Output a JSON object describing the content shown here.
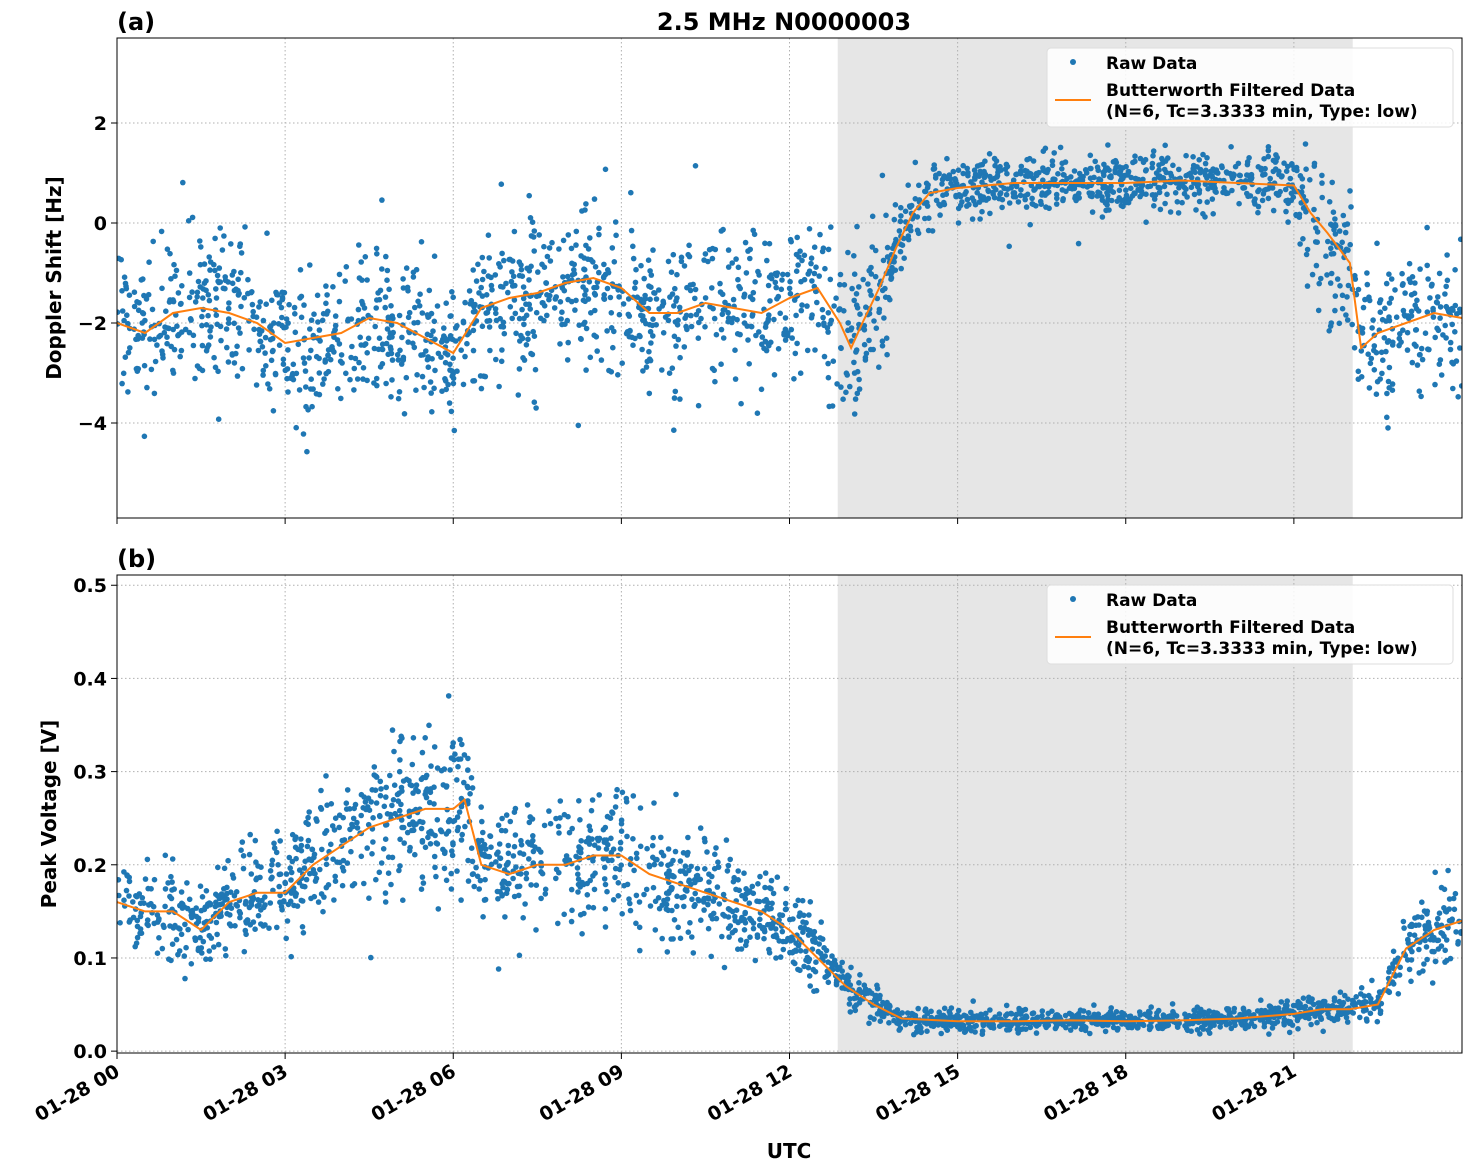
{
  "title": "2.5 MHz N0000003",
  "xlabel": "UTC",
  "x_tick_labels": [
    "01-28 00",
    "01-28 03",
    "01-28 06",
    "01-28 09",
    "01-28 12",
    "01-28 15",
    "01-28 18",
    "01-28 21"
  ],
  "legend": {
    "raw": "Raw Data",
    "filtered_line1": "Butterworth Filtered Data",
    "filtered_line2": "(N=6, Tc=3.3333 min, Type: low)"
  },
  "colors": {
    "raw": "#1f77b4",
    "filtered": "#ff7f0e",
    "shade": "#e6e6e6"
  },
  "chart_data": [
    {
      "type": "scatter",
      "panel_label": "(a)",
      "ylabel": "Doppler Shift [Hz]",
      "x_unit": "hours UTC on 01-28",
      "xlim": [
        0,
        24
      ],
      "ylim": [
        -5.9,
        3.7
      ],
      "x_ticks": [
        0,
        3,
        6,
        9,
        12,
        15,
        18,
        21
      ],
      "y_ticks": [
        2,
        0,
        -2,
        -4
      ],
      "y_tick_labels": [
        "2",
        "0",
        "−2",
        "−4"
      ],
      "grid": true,
      "legend_position": "top-right",
      "shaded_region": [
        12.86,
        22.05
      ],
      "series": [
        {
          "name": "Raw Data",
          "kind": "scatter"
        },
        {
          "name": "Butterworth Filtered Data",
          "kind": "line",
          "x": [
            0,
            0.5,
            1,
            1.5,
            2,
            2.5,
            3,
            3.5,
            4,
            4.5,
            5,
            5.5,
            6,
            6.5,
            7,
            7.5,
            8,
            8.5,
            9,
            9.5,
            10,
            10.5,
            11,
            11.5,
            12,
            12.5,
            12.9,
            13.1,
            13.3,
            13.6,
            13.9,
            14.2,
            14.5,
            15,
            16,
            17,
            18,
            19,
            20,
            21,
            21.3,
            21.6,
            22,
            22.2,
            22.5,
            23,
            23.5,
            24
          ],
          "y": [
            -2.0,
            -2.2,
            -1.8,
            -1.7,
            -1.8,
            -2.0,
            -2.4,
            -2.3,
            -2.2,
            -1.9,
            -2.0,
            -2.3,
            -2.6,
            -1.7,
            -1.5,
            -1.4,
            -1.2,
            -1.1,
            -1.3,
            -1.8,
            -1.8,
            -1.6,
            -1.7,
            -1.8,
            -1.5,
            -1.3,
            -2.0,
            -2.5,
            -2.0,
            -1.3,
            -0.5,
            0.2,
            0.6,
            0.7,
            0.8,
            0.8,
            0.8,
            0.85,
            0.8,
            0.75,
            0.2,
            -0.2,
            -0.8,
            -2.5,
            -2.2,
            -2.0,
            -1.8,
            -1.9
          ]
        }
      ]
    },
    {
      "type": "scatter",
      "panel_label": "(b)",
      "ylabel": "Peak Voltage [V]",
      "x_unit": "hours UTC on 01-28",
      "xlim": [
        0,
        24
      ],
      "ylim": [
        -0.002,
        0.511
      ],
      "x_ticks": [
        0,
        3,
        6,
        9,
        12,
        15,
        18,
        21
      ],
      "y_ticks": [
        0.0,
        0.1,
        0.2,
        0.3,
        0.4,
        0.5
      ],
      "y_tick_labels": [
        "0.0",
        "0.1",
        "0.2",
        "0.3",
        "0.4",
        "0.5"
      ],
      "grid": true,
      "legend_position": "top-right",
      "shaded_region": [
        12.86,
        22.05
      ],
      "series": [
        {
          "name": "Raw Data",
          "kind": "scatter"
        },
        {
          "name": "Butterworth Filtered Data",
          "kind": "line",
          "x": [
            0,
            0.5,
            1,
            1.5,
            2,
            2.5,
            3,
            3.5,
            4,
            4.5,
            5,
            5.5,
            6,
            6.2,
            6.5,
            7,
            7.5,
            8,
            8.5,
            9,
            9.5,
            10,
            10.5,
            11,
            11.5,
            12,
            12.5,
            13,
            13.5,
            14,
            15,
            16,
            17,
            18,
            19,
            20,
            21,
            21.5,
            22,
            22.5,
            23,
            23.5,
            24
          ],
          "y": [
            0.16,
            0.15,
            0.15,
            0.13,
            0.16,
            0.17,
            0.17,
            0.2,
            0.22,
            0.24,
            0.25,
            0.26,
            0.26,
            0.27,
            0.2,
            0.19,
            0.2,
            0.2,
            0.21,
            0.21,
            0.19,
            0.18,
            0.17,
            0.16,
            0.15,
            0.13,
            0.1,
            0.07,
            0.05,
            0.035,
            0.032,
            0.032,
            0.033,
            0.032,
            0.033,
            0.035,
            0.04,
            0.045,
            0.045,
            0.05,
            0.11,
            0.13,
            0.14
          ]
        }
      ]
    }
  ]
}
